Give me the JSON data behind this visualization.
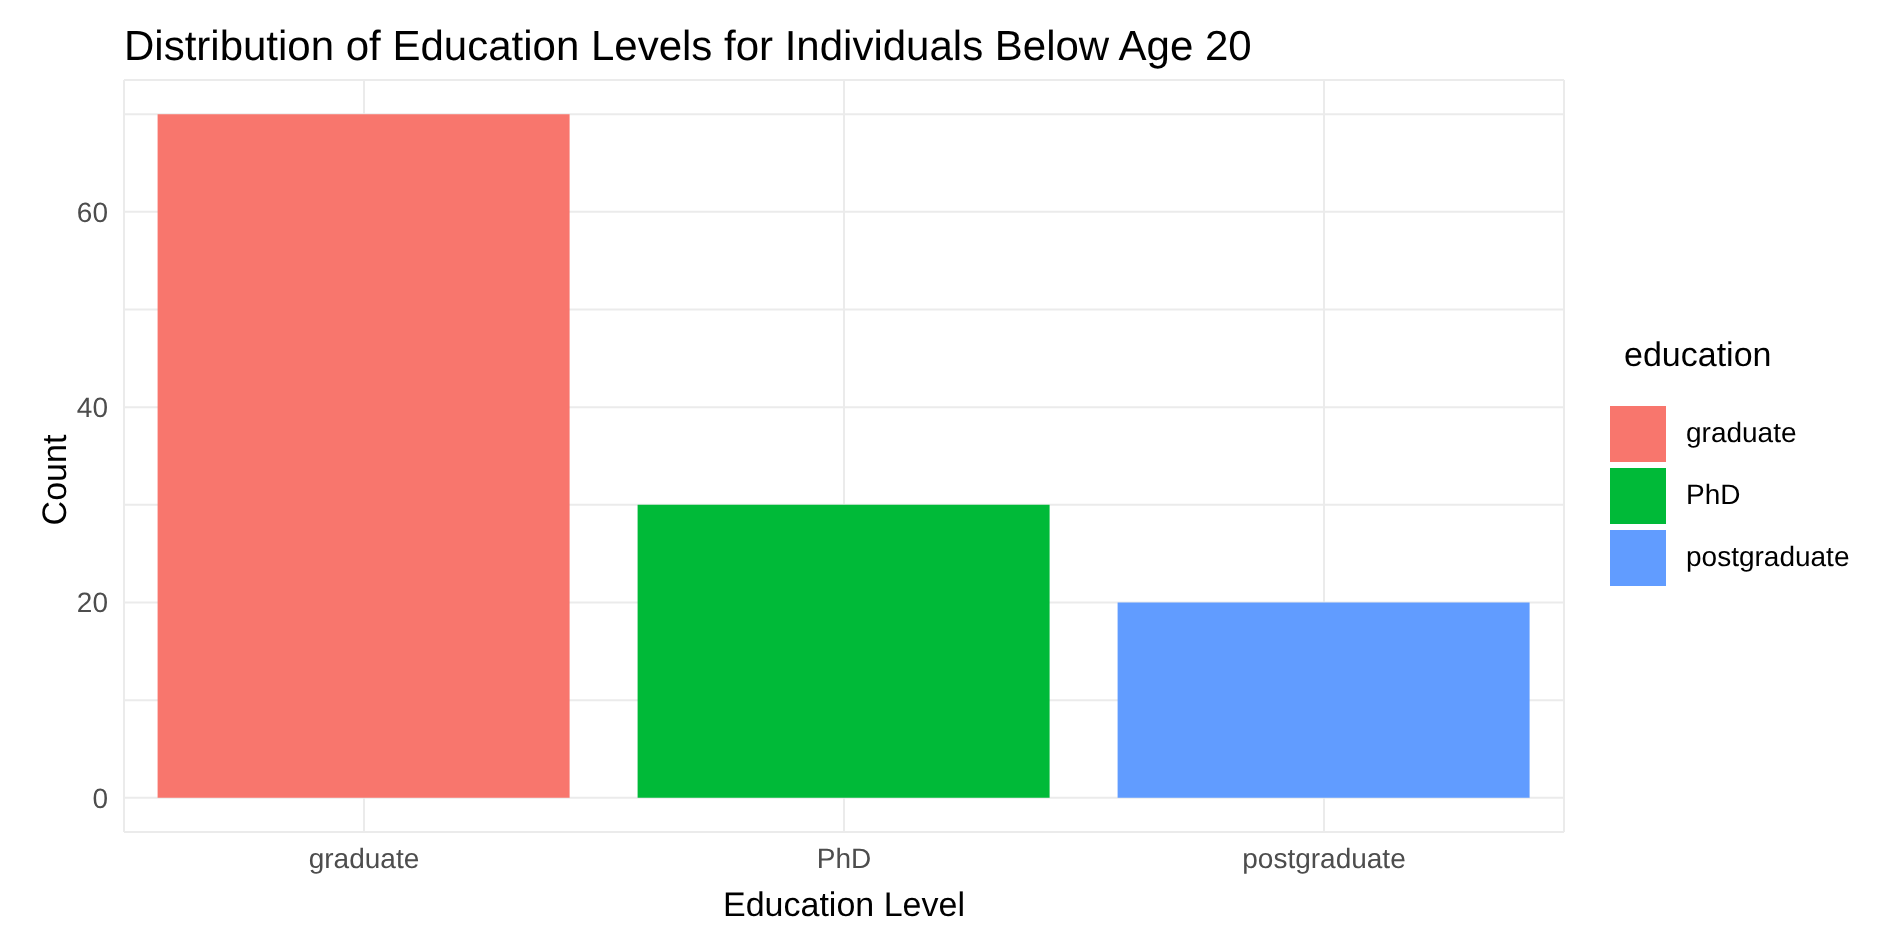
{
  "chart_data": {
    "type": "bar",
    "title": "Distribution of Education Levels for Individuals Below Age 20",
    "xlabel": "Education Level",
    "ylabel": "Count",
    "legend_title": "education",
    "categories": [
      "graduate",
      "PhD",
      "postgraduate"
    ],
    "stacked": true,
    "series": [
      {
        "name": "graduate",
        "color": "#f8766d",
        "values": [
          70,
          null,
          null
        ]
      },
      {
        "name": "PhD",
        "color": "#00ba38",
        "values": [
          null,
          30,
          null
        ]
      },
      {
        "name": "postgraduate",
        "color": "#619cff",
        "values": [
          null,
          null,
          20
        ]
      }
    ],
    "ylim": [
      -3.5,
      73.5
    ],
    "yticks": [
      0,
      {
        "value": 10,
        "label": null
      },
      20,
      {
        "value": 30,
        "label": null
      },
      40,
      {
        "value": 50,
        "label": null
      },
      60,
      {
        "value": 70,
        "label": null
      }
    ],
    "grid": true,
    "legend": "right"
  }
}
